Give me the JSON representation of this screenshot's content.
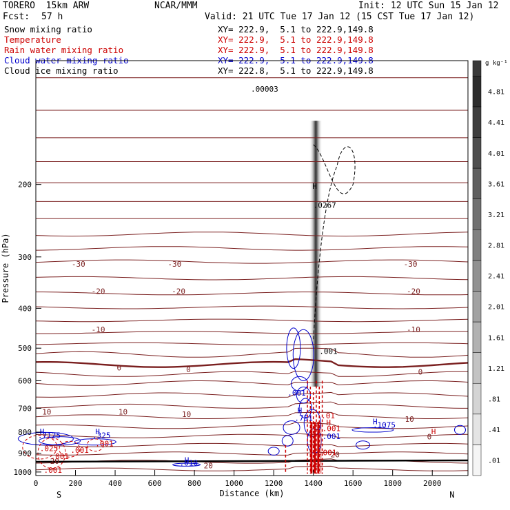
{
  "header": {
    "model": "TORERO  15km ARW",
    "org": "NCAR/MMM",
    "init": "Init: 12 UTC Sun 15 Jan 12",
    "fcst_label": "Fcst:",
    "fcst_value": "57 h",
    "valid": "Valid: 21 UTC Tue 17 Jan 12 (15 CST Tue 17 Jan 12)"
  },
  "legend": [
    {
      "name": "Snow mixing ratio",
      "color": "#000000",
      "xy": "XY= 222.9,  5.1 to 222.9,149.8"
    },
    {
      "name": "Temperature",
      "color": "#cc0000",
      "xy": "XY= 222.9,  5.1 to 222.9,149.8"
    },
    {
      "name": "Rain water mixing ratio",
      "color": "#cc0000",
      "xy": "XY= 222.9,  5.1 to 222.9,149.8"
    },
    {
      "name": "Cloud water mixing ratio",
      "color": "#0000cc",
      "xy": "XY= 222.9,  5.1 to 222.9,149.8"
    },
    {
      "name": "Cloud ice mixing ratio",
      "color": "#000000",
      "xy": "XY= 222.8,  5.1 to 222.9,149.8"
    }
  ],
  "chart_data": {
    "type": "cross-section",
    "xlabel": "Distance (km)",
    "ylabel": "Pressure (hPa)",
    "xlim": [
      0,
      2180
    ],
    "ylim": [
      100,
      1020
    ],
    "y_scale": "log",
    "x_ticks": [
      0,
      200,
      400,
      600,
      800,
      1000,
      1200,
      1400,
      1600,
      1800,
      2000
    ],
    "y_ticks": [
      200,
      300,
      400,
      500,
      600,
      700,
      800,
      900,
      1000
    ],
    "x_end_labels": {
      "left": "S",
      "right": "N"
    },
    "colorbar": {
      "unit": "g kg⁻¹",
      "levels": [
        ".01",
        ".41",
        ".81",
        "1.21",
        "1.61",
        "2.01",
        "2.41",
        "2.81",
        "3.21",
        "3.61",
        "4.01",
        "4.41",
        "4.81"
      ]
    },
    "temperature_labels": [
      {
        "text": "-30",
        "x": 215,
        "p": 313
      },
      {
        "text": "-30",
        "x": 700,
        "p": 313
      },
      {
        "text": "-30",
        "x": 1890,
        "p": 313
      },
      {
        "text": "-20",
        "x": 315,
        "p": 365
      },
      {
        "text": "-20",
        "x": 720,
        "p": 365
      },
      {
        "text": "-20",
        "x": 1905,
        "p": 365
      },
      {
        "text": "-10",
        "x": 315,
        "p": 452
      },
      {
        "text": "-10",
        "x": 1905,
        "p": 452
      },
      {
        "text": "0",
        "x": 420,
        "p": 560
      },
      {
        "text": "0",
        "x": 770,
        "p": 565
      },
      {
        "text": "0",
        "x": 1940,
        "p": 573
      },
      {
        "text": "10",
        "x": 55,
        "p": 717
      },
      {
        "text": "10",
        "x": 440,
        "p": 717
      },
      {
        "text": "10",
        "x": 760,
        "p": 727
      },
      {
        "text": "10",
        "x": 1885,
        "p": 746
      },
      {
        "text": "20",
        "x": 1510,
        "p": 910
      },
      {
        "text": "20",
        "x": 870,
        "p": 968
      },
      {
        "text": "20",
        "x": 95,
        "p": 945
      },
      {
        "text": "0",
        "x": 1985,
        "p": 823
      }
    ],
    "mixing_ratio_labels": [
      {
        "text": ".0267",
        "x": 1400,
        "p": 228,
        "color": "#000000"
      },
      {
        "text": ".00003",
        "x": 1085,
        "p": 119,
        "color": "#000000"
      },
      {
        "text": ".001",
        "x": 1430,
        "p": 516,
        "color": "#000000"
      },
      {
        "text": ".001",
        "x": 1270,
        "p": 652,
        "color": "#0000cc"
      },
      {
        "text": ".751",
        "x": 1305,
        "p": 750,
        "color": "#0000cc"
      },
      {
        "text": ".01",
        "x": 1440,
        "p": 740,
        "color": "#cc0000"
      },
      {
        "text": ".1075",
        "x": 1700,
        "p": 780,
        "color": "#0000cc"
      },
      {
        "text": ".7125",
        "x": 10,
        "p": 827,
        "color": "#0000cc"
      },
      {
        "text": ".325",
        "x": 285,
        "p": 827,
        "color": "#0000cc"
      },
      {
        "text": ".001",
        "x": 1445,
        "p": 795,
        "color": "#cc0000"
      },
      {
        "text": ".001",
        "x": 1445,
        "p": 832,
        "color": "#0000cc"
      },
      {
        "text": ".001",
        "x": 300,
        "p": 865,
        "color": "#cc0000"
      },
      {
        "text": ".025",
        "x": 20,
        "p": 890,
        "color": "#cc0000"
      },
      {
        "text": ".001",
        "x": 175,
        "p": 898,
        "color": "#cc0000"
      },
      {
        "text": ".001",
        "x": 1425,
        "p": 910,
        "color": "#cc0000"
      },
      {
        "text": ".001",
        "x": 75,
        "p": 930,
        "color": "#cc0000"
      },
      {
        "text": ".001",
        "x": 40,
        "p": 1005,
        "color": "#cc0000"
      },
      {
        "text": ".010",
        "x": 725,
        "p": 965,
        "color": "#0000cc"
      }
    ],
    "highs": [
      {
        "x": 1395,
        "p": 205,
        "color": "#000000"
      },
      {
        "x": 1320,
        "p": 720,
        "color": "#0000cc"
      },
      {
        "x": 1700,
        "p": 765,
        "color": "#0000cc"
      },
      {
        "x": 20,
        "p": 810,
        "color": "#0000cc"
      },
      {
        "x": 300,
        "p": 810,
        "color": "#0000cc"
      },
      {
        "x": 750,
        "p": 950,
        "color": "#0000cc"
      },
      {
        "x": 1465,
        "p": 770,
        "color": "#cc0000"
      },
      {
        "x": 1995,
        "p": 810,
        "color": "#cc0000"
      }
    ]
  }
}
